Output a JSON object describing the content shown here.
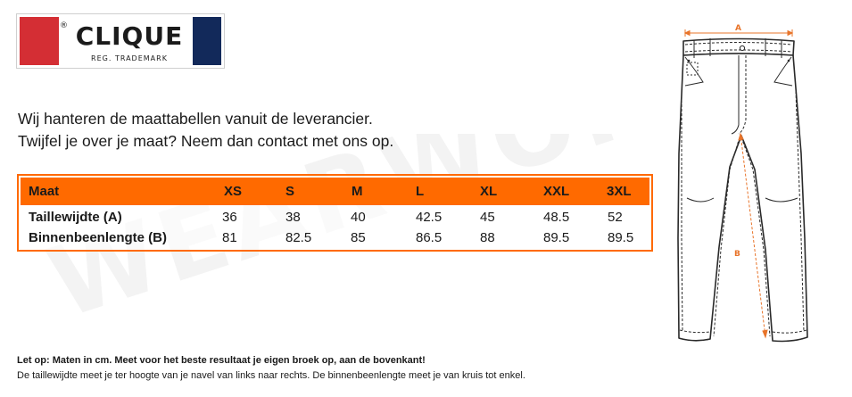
{
  "logo": {
    "brand": "CLIQUE",
    "reg_mark": "®",
    "tagline": "REG. TRADEMARK",
    "colors": {
      "red": "#d42e34",
      "blue": "#12295a"
    }
  },
  "watermark": "WEARWORK.NL",
  "intro": {
    "line1": "Wij hanteren de maattabellen vanuit de leverancier.",
    "line2": "Twijfel je over je maat? Neem dan contact met ons op."
  },
  "table": {
    "accent_color": "#ff6a00",
    "header": {
      "label": "Maat",
      "sizes": [
        "XS",
        "S",
        "M",
        "L",
        "XL",
        "XXL",
        "3XL"
      ]
    },
    "rows": [
      {
        "label": "Taillewijdte (A)",
        "values": [
          "36",
          "38",
          "40",
          "42.5",
          "45",
          "48.5",
          "52"
        ]
      },
      {
        "label": "Binnenbeenlengte (B)",
        "values": [
          "81",
          "82.5",
          "85",
          "86.5",
          "88",
          "89.5",
          "89.5"
        ]
      }
    ]
  },
  "notes": {
    "bold": "Let op: Maten in cm. Meet voor het beste resultaat je eigen broek op, aan de bovenkant!",
    "regular": "De taillewijdte meet je ter hoogte van je navel van links naar rechts. De binnenbeenlengte meet je van kruis tot enkel."
  },
  "diagram": {
    "icon": "trousers-icon",
    "label_a": "A",
    "label_b": "B",
    "measure_color": "#e8742a"
  }
}
